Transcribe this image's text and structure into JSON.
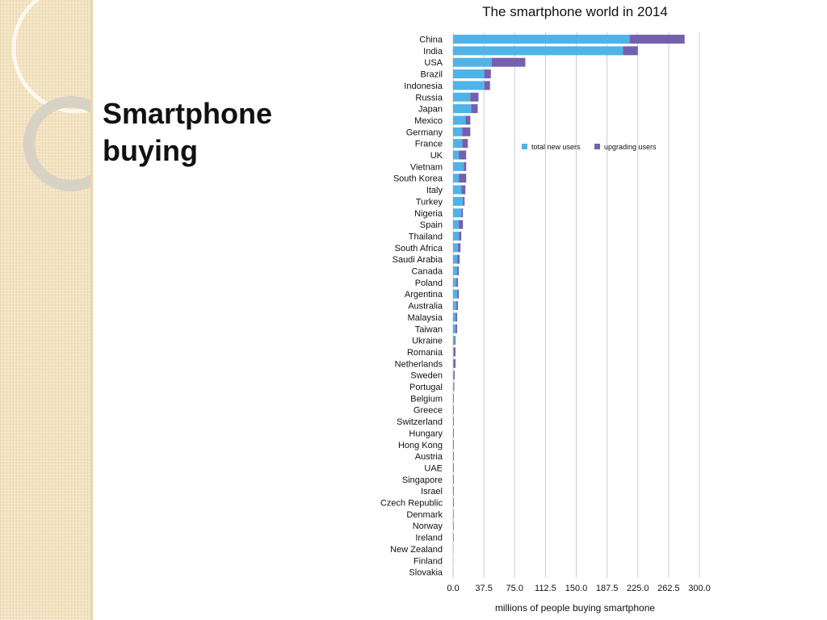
{
  "slide": {
    "title_line1": "Smartphone",
    "title_line2": "buying"
  },
  "colors": {
    "panel": "#f3e3c0",
    "new_users": "#4fb3e8",
    "upgrading_users": "#7560b0",
    "grid": "#cfcfcf"
  },
  "chart_data": {
    "type": "bar",
    "orientation": "horizontal",
    "stacked": true,
    "title": "The smartphone world in 2014",
    "xlabel": "millions of people buying smartphone",
    "ylabel": "",
    "xlim": [
      0,
      300
    ],
    "xticks": [
      "0.0",
      "37.5",
      "75.0",
      "112.5",
      "150.0",
      "187.5",
      "225.0",
      "262.5",
      "300.0"
    ],
    "grid": "vertical",
    "legend_position": "right",
    "categories": [
      "China",
      "India",
      "USA",
      "Brazil",
      "Indonesia",
      "Russia",
      "Japan",
      "Mexico",
      "Germany",
      "France",
      "UK",
      "Vietnam",
      "South Korea",
      "Italy",
      "Turkey",
      "Nigeria",
      "Spain",
      "Thailand",
      "South Africa",
      "Saudi Arabia",
      "Canada",
      "Poland",
      "Argentina",
      "Australia",
      "Malaysia",
      "Taiwan",
      "Ukraine",
      "Romania",
      "Netherlands",
      "Sweden",
      "Portugal",
      "Belgium",
      "Greece",
      "Switzerland",
      "Hungary",
      "Hong Kong",
      "Austria",
      "UAE",
      "Singapore",
      "Israel",
      "Czech Republic",
      "Denmark",
      "Norway",
      "Ireland",
      "New Zealand",
      "Finland",
      "Slovakia"
    ],
    "series": [
      {
        "name": "total new users",
        "values": [
          215,
          207,
          47,
          38,
          38,
          21,
          22,
          15,
          11,
          11,
          7,
          13,
          7,
          10,
          12,
          10,
          7,
          7,
          6,
          5,
          5,
          4,
          5,
          4,
          3,
          3,
          2,
          1,
          1,
          1,
          1,
          0.5,
          0.5,
          0.5,
          0.5,
          0.5,
          0.5,
          0.5,
          0.5,
          0.5,
          0.5,
          0.3,
          0.3,
          0.3,
          0.2,
          0.1,
          0.1
        ]
      },
      {
        "name": "upgrading users",
        "values": [
          67,
          18,
          41,
          8,
          7,
          10,
          8,
          6,
          10,
          7,
          9,
          3,
          9,
          5,
          2,
          2,
          5,
          3,
          3,
          3,
          2,
          2,
          2,
          2,
          2,
          2,
          1,
          2,
          2,
          1,
          0.5,
          0.5,
          0.5,
          0.5,
          0.5,
          0.5,
          0.5,
          0.5,
          0.5,
          0.5,
          0.5,
          0.5,
          0.5,
          0.5,
          0.2,
          0.1,
          0.1
        ]
      }
    ]
  }
}
